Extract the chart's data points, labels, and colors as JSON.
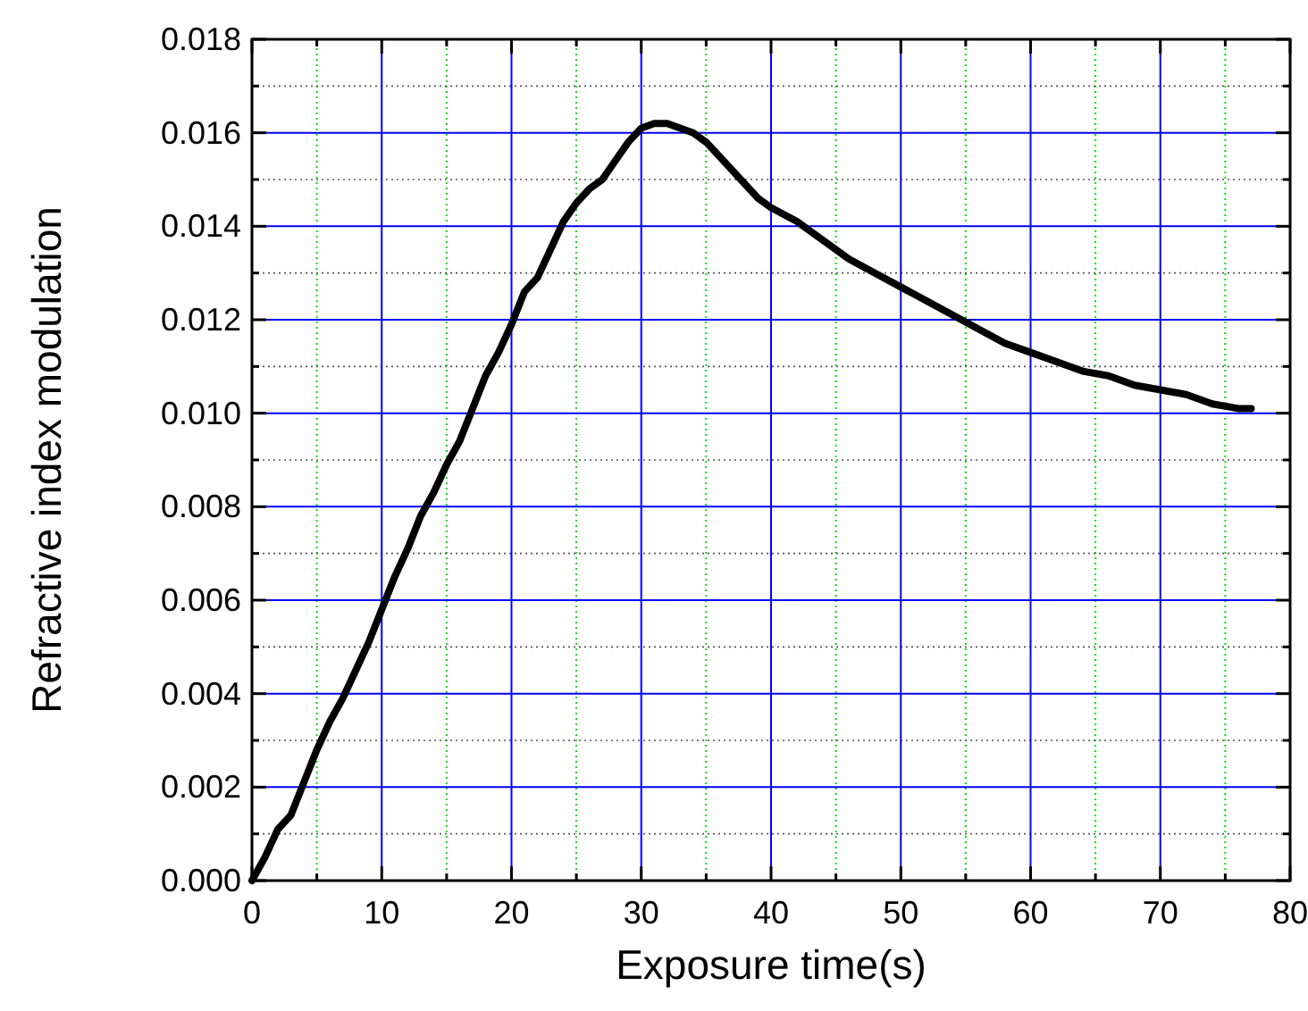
{
  "chart_data": {
    "type": "line",
    "xlabel": "Exposure time(s)",
    "ylabel": "Refractive index modulation",
    "x": [
      0,
      1,
      2,
      3,
      4,
      5,
      6,
      7,
      8,
      9,
      10,
      11,
      12,
      13,
      14,
      15,
      16,
      17,
      18,
      19,
      20,
      21,
      22,
      23,
      24,
      25,
      26,
      27,
      28,
      29,
      30,
      31,
      32,
      33,
      34,
      35,
      36,
      37,
      38,
      39,
      40,
      42,
      44,
      46,
      48,
      50,
      52,
      54,
      56,
      58,
      60,
      62,
      64,
      66,
      68,
      70,
      72,
      74,
      76,
      77
    ],
    "series": [
      {
        "color": "#000000",
        "values": [
          0,
          0.0005,
          0.0011,
          0.0014,
          0.0021,
          0.0028,
          0.0034,
          0.0039,
          0.0045,
          0.0051,
          0.0058,
          0.0065,
          0.0071,
          0.0078,
          0.0083,
          0.0089,
          0.0094,
          0.0101,
          0.0108,
          0.0113,
          0.0119,
          0.0126,
          0.0129,
          0.0135,
          0.0141,
          0.0145,
          0.0148,
          0.015,
          0.0154,
          0.0158,
          0.0161,
          0.0162,
          0.0162,
          0.0161,
          0.016,
          0.0158,
          0.0155,
          0.0152,
          0.0149,
          0.0146,
          0.0144,
          0.0141,
          0.0137,
          0.0133,
          0.013,
          0.0127,
          0.0124,
          0.0121,
          0.0118,
          0.0115,
          0.0113,
          0.0111,
          0.0109,
          0.0108,
          0.0106,
          0.0105,
          0.0104,
          0.0102,
          0.0101,
          0.0101
        ]
      }
    ],
    "xlim": [
      0,
      80
    ],
    "xticks": [
      0,
      {
        "value": 5,
        "label": null
      },
      10,
      {
        "value": 15,
        "label": null
      },
      20,
      {
        "value": 25,
        "label": null
      },
      30,
      {
        "value": 35,
        "label": null
      },
      40,
      {
        "value": 45,
        "label": null
      },
      50,
      {
        "value": 55,
        "label": null
      },
      60,
      {
        "value": 65,
        "label": null
      },
      70,
      {
        "value": 75,
        "label": null
      },
      80
    ],
    "ylim": [
      0,
      0.018
    ],
    "yticks": [
      {
        "value": 0,
        "label": "0.000"
      },
      {
        "value": 0.001,
        "label": null
      },
      {
        "value": 0.002,
        "label": "0.002"
      },
      {
        "value": 0.003,
        "label": null
      },
      {
        "value": 0.004,
        "label": "0.004"
      },
      {
        "value": 0.005,
        "label": null
      },
      {
        "value": 0.006,
        "label": "0.006"
      },
      {
        "value": 0.007,
        "label": null
      },
      {
        "value": 0.008,
        "label": "0.008"
      },
      {
        "value": 0.009,
        "label": null
      },
      {
        "value": 0.01,
        "label": "0.010"
      },
      {
        "value": 0.011,
        "label": null
      },
      {
        "value": 0.012,
        "label": "0.012"
      },
      {
        "value": 0.013,
        "label": null
      },
      {
        "value": 0.014,
        "label": "0.014"
      },
      {
        "value": 0.015,
        "label": null
      },
      {
        "value": 0.016,
        "label": "0.016"
      },
      {
        "value": 0.017,
        "label": null
      },
      {
        "value": 0.018,
        "label": "0.018"
      }
    ],
    "grid": true,
    "marker": "none",
    "line_style": "solid"
  }
}
